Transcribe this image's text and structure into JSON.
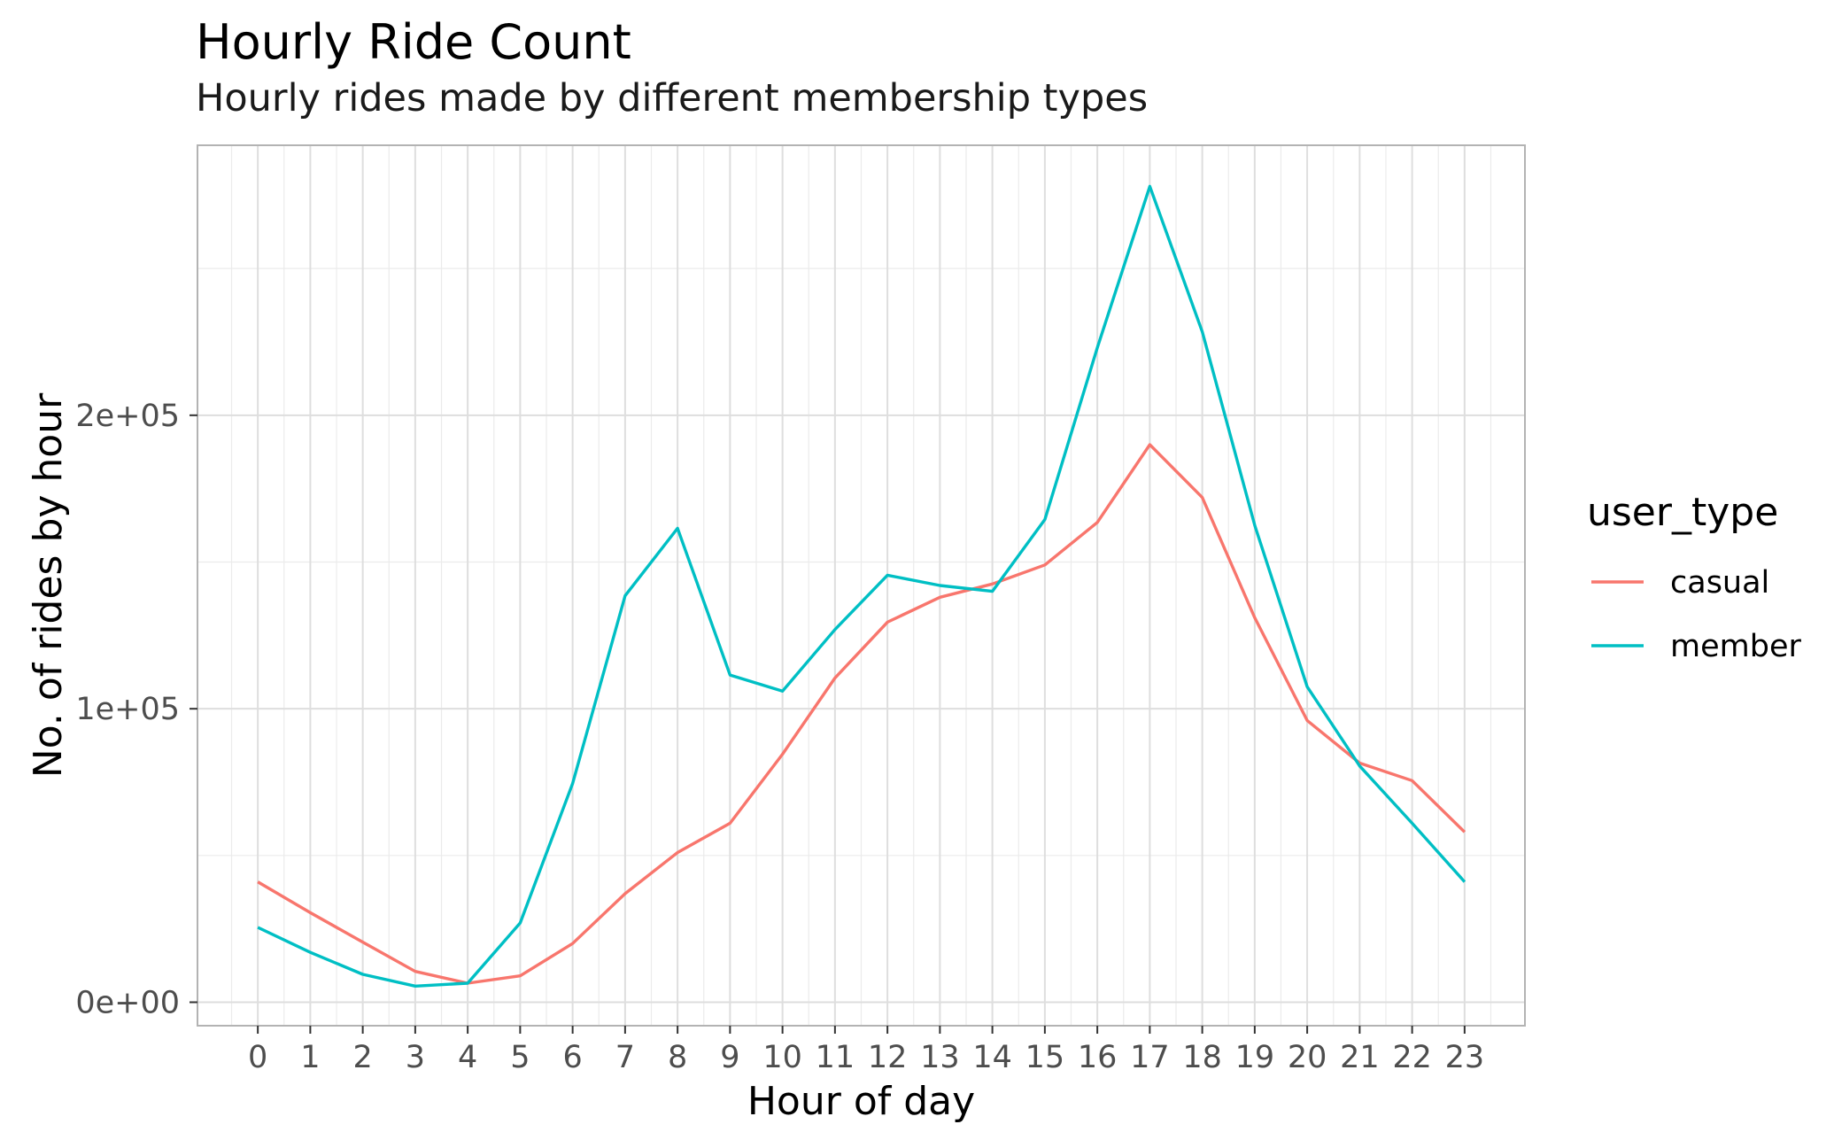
{
  "chart_data": {
    "type": "line",
    "title": "Hourly Ride Count",
    "subtitle": "Hourly rides made by different membership types",
    "xlabel": "Hour of day",
    "ylabel": "No. of rides by hour",
    "x": [
      0,
      1,
      2,
      3,
      4,
      5,
      6,
      7,
      8,
      9,
      10,
      11,
      12,
      13,
      14,
      15,
      16,
      17,
      18,
      19,
      20,
      21,
      22,
      23
    ],
    "x_tick_labels": [
      "0",
      "1",
      "2",
      "3",
      "4",
      "5",
      "6",
      "7",
      "8",
      "9",
      "10",
      "11",
      "12",
      "13",
      "14",
      "15",
      "16",
      "17",
      "18",
      "19",
      "20",
      "21",
      "22",
      "23"
    ],
    "y_tick_values": [
      0,
      100000,
      200000
    ],
    "y_tick_labels": [
      "0e+00",
      "1e+05",
      "2e+05"
    ],
    "xlim": [
      -1.15,
      24.15
    ],
    "ylim": [
      -8000,
      292000
    ],
    "grid": true,
    "legend": {
      "title": "user_type",
      "position": "right"
    },
    "series": [
      {
        "name": "casual",
        "color": "#F8766D",
        "values": [
          41000,
          30500,
          20500,
          10500,
          6500,
          9000,
          20000,
          37000,
          51000,
          61000,
          84500,
          110500,
          129500,
          138000,
          142500,
          149000,
          163500,
          190000,
          172000,
          131000,
          96000,
          81500,
          75500,
          58000
        ]
      },
      {
        "name": "member",
        "color": "#00BFC4",
        "values": [
          25500,
          17000,
          9500,
          5500,
          6500,
          27000,
          74500,
          138500,
          161500,
          111500,
          106000,
          127000,
          145500,
          142000,
          140000,
          164500,
          223000,
          278000,
          228500,
          162500,
          107500,
          80500,
          61000,
          41000
        ]
      }
    ]
  }
}
